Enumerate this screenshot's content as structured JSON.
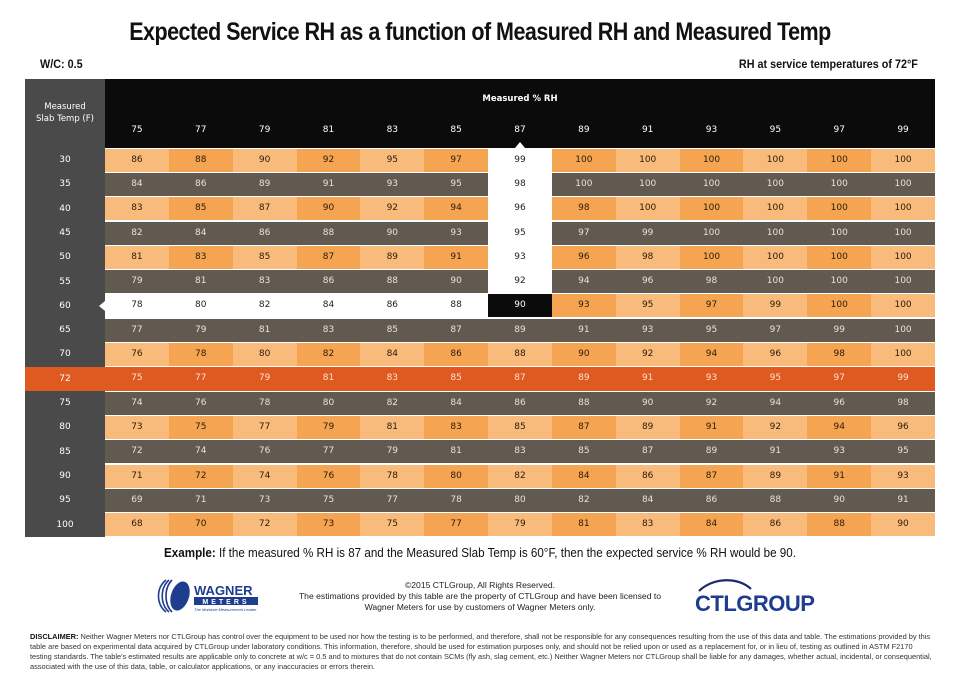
{
  "header": {
    "title": "Expected Service RH as a function of Measured RH and Measured Temp",
    "wc_label": "W/C: 0.5",
    "service_label": "RH at service temperatures of 72°F"
  },
  "colors": {
    "light_orange": "#f9bb7b",
    "dark_orange": "#f5a552",
    "dark_gray_row": "#625a50",
    "highlight_row": "#de5a21",
    "header_black": "#0b0b0b",
    "row_header_gray": "#4a4a4a",
    "selected_cell": "#0b0b0b",
    "path_white": "#ffffff"
  },
  "chart_data": {
    "type": "table",
    "title": "Expected Service RH as a function of Measured RH and Measured Temp",
    "subtitle_left": "W/C: 0.5",
    "subtitle_right": "RH at service temperatures of 72°F",
    "row_axis_label": "Measured Slab Temp (F)",
    "col_axis_label": "Measured % RH",
    "columns": [
      75,
      77,
      79,
      81,
      83,
      85,
      87,
      89,
      91,
      93,
      95,
      97,
      99
    ],
    "rows": [
      30,
      35,
      40,
      45,
      50,
      55,
      60,
      65,
      70,
      72,
      75,
      80,
      85,
      90,
      95,
      100
    ],
    "values": [
      [
        86,
        88,
        90,
        92,
        95,
        97,
        99,
        100,
        100,
        100,
        100,
        100,
        100
      ],
      [
        84,
        86,
        89,
        91,
        93,
        95,
        98,
        100,
        100,
        100,
        100,
        100,
        100
      ],
      [
        83,
        85,
        87,
        90,
        92,
        94,
        96,
        98,
        100,
        100,
        100,
        100,
        100
      ],
      [
        82,
        84,
        86,
        88,
        90,
        93,
        95,
        97,
        99,
        100,
        100,
        100,
        100
      ],
      [
        81,
        83,
        85,
        87,
        89,
        91,
        93,
        96,
        98,
        100,
        100,
        100,
        100
      ],
      [
        79,
        81,
        83,
        86,
        88,
        90,
        92,
        94,
        96,
        98,
        100,
        100,
        100
      ],
      [
        78,
        80,
        82,
        84,
        86,
        88,
        90,
        93,
        95,
        97,
        99,
        100,
        100
      ],
      [
        77,
        79,
        81,
        83,
        85,
        87,
        89,
        91,
        93,
        95,
        97,
        99,
        100
      ],
      [
        76,
        78,
        80,
        82,
        84,
        86,
        88,
        90,
        92,
        94,
        96,
        98,
        100
      ],
      [
        75,
        77,
        79,
        81,
        83,
        85,
        87,
        89,
        91,
        93,
        95,
        97,
        99
      ],
      [
        74,
        76,
        78,
        80,
        82,
        84,
        86,
        88,
        90,
        92,
        94,
        96,
        98
      ],
      [
        73,
        75,
        77,
        79,
        81,
        83,
        85,
        87,
        89,
        91,
        92,
        94,
        96
      ],
      [
        72,
        74,
        76,
        77,
        79,
        81,
        83,
        85,
        87,
        89,
        91,
        93,
        95
      ],
      [
        71,
        72,
        74,
        76,
        78,
        80,
        82,
        84,
        86,
        87,
        89,
        91,
        93
      ],
      [
        69,
        71,
        73,
        75,
        77,
        78,
        80,
        82,
        84,
        86,
        88,
        90,
        91
      ],
      [
        68,
        70,
        72,
        73,
        75,
        77,
        79,
        81,
        83,
        84,
        86,
        88,
        90
      ]
    ],
    "highlighted_row": 72,
    "example_selection": {
      "measured_rh": 87,
      "slab_temp": 60,
      "result": 90
    }
  },
  "example": {
    "label": "Example:",
    "text": " If the measured % RH is 87 and the Measured Slab Temp is 60°F, then the expected service % RH would be 90."
  },
  "footer": {
    "copyright_line1": "©2015 CTLGroup, All Rights Reserved.",
    "copyright_line2": "The estimations provided by this table are the property of CTLGroup and have been licensed to",
    "copyright_line3": "Wagner Meters for use by customers of Wagner Meters only.",
    "wagner_logo_name": "WAGNER",
    "wagner_logo_sub": "METERS",
    "wagner_tagline": "The Moisture Measurement Leader",
    "ctl_logo_text": "CTLGROUP",
    "disclaimer_label": "DISCLAIMER:",
    "disclaimer_text": " Neither Wagner Meters nor CTLGroup has control over the equipment to be used nor how the testing is to be performed, and therefore, shall not be responsible for any consequences resulting from the use of this data and table. The estimations provided by this table are based on experimental data acquired by CTLGroup under laboratory conditions. This information, therefore, should be used for estimation purposes only, and should not be relied upon or used as a replacement for, or in lieu of, testing as outlined in ASTM F2170 testing standards. The table's estimated results are applicable only to concrete at w/c = 0.5 and to mixtures that do not contain SCMs (fly ash, slag cement, etc.) Neither Wagner Meters nor CTLGroup shall be liable for any damages, whether actual, incidental, or consequential, associated with the use of this data, table, or calculator applications, or any inaccuracies or errors therein."
  }
}
